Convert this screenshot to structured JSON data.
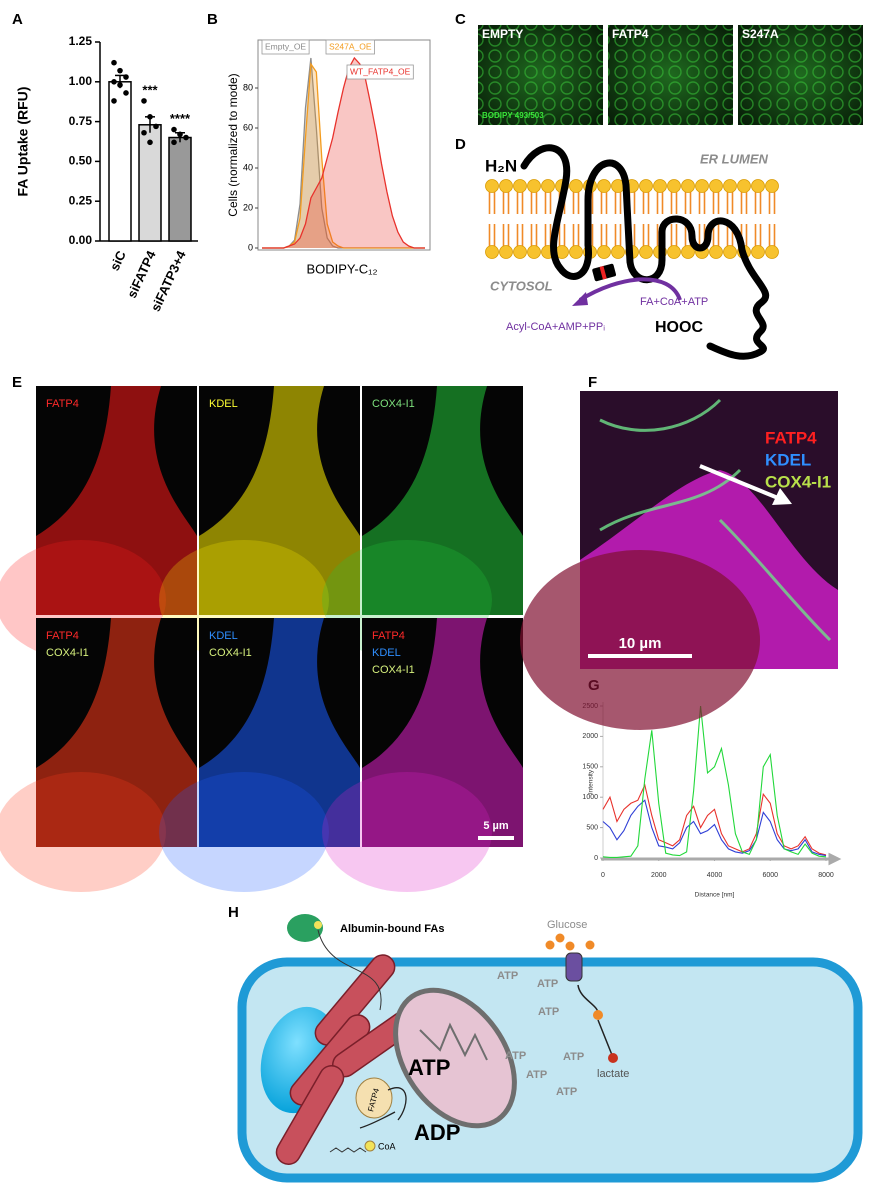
{
  "panel_labels": [
    "A",
    "B",
    "C",
    "D",
    "E",
    "F",
    "G",
    "H"
  ],
  "chart_data": [
    {
      "type": "bar",
      "ylabel": "FA Uptake (RFU)",
      "categories": [
        "siC",
        "siFATP4",
        "siFATP3+4"
      ],
      "values": [
        1.0,
        0.73,
        0.65
      ],
      "errors": [
        0.04,
        0.05,
        0.03
      ],
      "bar_colors": [
        "#ffffff",
        "#d9d9d9",
        "#999999"
      ],
      "points": [
        [
          1.12,
          1.07,
          1.03,
          1.0,
          0.98,
          0.93,
          0.88
        ],
        [
          0.88,
          0.78,
          0.72,
          0.68,
          0.62
        ],
        [
          0.7,
          0.67,
          0.65,
          0.62
        ]
      ],
      "significance": [
        {
          "index": 1,
          "text": "***"
        },
        {
          "index": 2,
          "text": "****"
        }
      ],
      "ylim": [
        0,
        1.25
      ],
      "yticks": [
        {
          "value": 0,
          "label": "0.00"
        },
        {
          "value": 0.25,
          "label": "0.25"
        },
        {
          "value": 0.5,
          "label": "0.50"
        },
        {
          "value": 0.75,
          "label": "0.75"
        },
        {
          "value": 1.0,
          "label": "1.00"
        },
        {
          "value": 1.25,
          "label": "1.25"
        }
      ]
    },
    {
      "type": "area",
      "xlabel": "BODIPY-C₁₂",
      "ylabel": "Cells (normalized to mode)",
      "x": [
        0,
        1,
        2,
        3,
        4,
        5,
        6,
        7,
        8,
        9,
        10,
        11,
        12,
        13,
        14,
        15,
        16,
        17,
        18,
        19,
        20,
        21,
        22,
        23,
        24,
        25,
        26,
        27,
        28,
        29,
        30
      ],
      "xlim": [
        0,
        30
      ],
      "ylim": [
        0,
        100
      ],
      "yticks": [
        0,
        20,
        40,
        60,
        80
      ],
      "series": [
        {
          "name": "Empty_OE",
          "color": "#8c8c8c",
          "values": [
            0,
            0,
            0,
            0,
            0,
            1,
            4,
            22,
            70,
            95,
            60,
            20,
            5,
            1,
            0,
            0,
            0,
            0,
            0,
            0,
            0,
            0,
            0,
            0,
            0,
            0,
            0,
            0,
            0,
            0,
            0
          ]
        },
        {
          "name": "S247A_OE",
          "color": "#f39c1f",
          "values": [
            0,
            0,
            0,
            0,
            0,
            1,
            3,
            15,
            55,
            92,
            88,
            45,
            12,
            3,
            1,
            0,
            0,
            0,
            0,
            0,
            0,
            0,
            0,
            0,
            0,
            0,
            0,
            0,
            0,
            0,
            0
          ]
        },
        {
          "name": "WT_FATP4_OE",
          "color": "#e8322c",
          "values": [
            0,
            0,
            0,
            0,
            0,
            1,
            2,
            5,
            12,
            25,
            30,
            35,
            45,
            55,
            68,
            80,
            90,
            95,
            92,
            85,
            72,
            58,
            42,
            28,
            16,
            8,
            3,
            1,
            0,
            0,
            0
          ]
        }
      ]
    },
    {
      "type": "line",
      "xlabel": "Distance [nm]",
      "ylabel": "Intensity",
      "x": [
        0,
        250,
        500,
        750,
        1000,
        1250,
        1500,
        1750,
        2000,
        2250,
        2500,
        2750,
        3000,
        3250,
        3500,
        3750,
        4000,
        4250,
        4500,
        4750,
        5000,
        5250,
        5500,
        5750,
        6000,
        6250,
        6500,
        6750,
        7000,
        7250,
        7500,
        7750,
        8000
      ],
      "xlim": [
        0,
        8000
      ],
      "ylim": [
        0,
        2500
      ],
      "xticks": [
        0,
        2000,
        4000,
        6000,
        8000
      ],
      "yticks": [
        0,
        500,
        1000,
        1500,
        2000,
        2500
      ],
      "series": [
        {
          "color": "#e8322c",
          "values": [
            800,
            1000,
            600,
            800,
            900,
            950,
            1200,
            700,
            300,
            250,
            200,
            300,
            700,
            850,
            500,
            700,
            800,
            400,
            200,
            150,
            100,
            150,
            400,
            1050,
            900,
            400,
            200,
            150,
            200,
            350,
            150,
            80,
            50
          ]
        },
        {
          "color": "#2f3fd6",
          "values": [
            600,
            500,
            300,
            450,
            700,
            850,
            950,
            500,
            200,
            180,
            150,
            250,
            500,
            600,
            400,
            450,
            550,
            300,
            150,
            100,
            80,
            120,
            300,
            750,
            600,
            300,
            150,
            120,
            150,
            300,
            100,
            60,
            40
          ]
        },
        {
          "color": "#22d83a",
          "values": [
            20,
            10,
            10,
            20,
            30,
            200,
            1300,
            2100,
            900,
            80,
            50,
            40,
            100,
            1100,
            2500,
            1400,
            1500,
            1800,
            1200,
            400,
            100,
            60,
            300,
            1500,
            1700,
            700,
            150,
            100,
            60,
            230,
            80,
            30,
            20
          ]
        }
      ]
    }
  ],
  "panel_c": {
    "images": [
      "EMPTY",
      "FATP4",
      "S247A"
    ],
    "stain": "BODIPY 493/503"
  },
  "panel_d": {
    "n_term": "H₂N",
    "c_term": "HOOC",
    "lumen": "ER LUMEN",
    "cytosol": "CYTOSOL",
    "substrates": "FA+CoA+ATP",
    "products": "Acyl-CoA+AMP+PPᵢ"
  },
  "panel_e": {
    "images": [
      {
        "labels": [
          {
            "text": "FATP4",
            "color": "#ff2a2a"
          }
        ],
        "tint": "#ff1a1a"
      },
      {
        "labels": [
          {
            "text": "KDEL",
            "color": "#ffff33"
          }
        ],
        "tint": "#ffee00"
      },
      {
        "labels": [
          {
            "text": "COX4-I1",
            "color": "#7de07d"
          }
        ],
        "tint": "#22c83a"
      },
      {
        "labels": [
          {
            "text": "FATP4",
            "color": "#ff2a2a"
          },
          {
            "text": "COX4-I1",
            "color": "#d6f07d"
          }
        ],
        "tint": "#ff3a1a"
      },
      {
        "labels": [
          {
            "text": "KDEL",
            "color": "#2f8fff"
          },
          {
            "text": "COX4-I1",
            "color": "#d6f07d"
          }
        ],
        "tint": "#1a5cff"
      },
      {
        "labels": [
          {
            "text": "FATP4",
            "color": "#ff2a2a"
          },
          {
            "text": "KDEL",
            "color": "#2f8fff"
          },
          {
            "text": "COX4-I1",
            "color": "#d6f07d"
          }
        ],
        "tint": "#e020c8"
      }
    ],
    "scale_bar": "5 µm"
  },
  "panel_f": {
    "labels": [
      {
        "text": "FATP4",
        "color": "#ff2020"
      },
      {
        "text": "KDEL",
        "color": "#2f8fff"
      },
      {
        "text": "COX4-I1",
        "color": "#b8e04a"
      }
    ],
    "scale_bar": "10 µm"
  },
  "panel_h": {
    "albumin": "Albumin-bound FAs",
    "glucose": "Glucose",
    "small_atp": [
      "ATP",
      "ATP",
      "ATP",
      "ATP",
      "ATP",
      "ATP",
      "ATP"
    ],
    "lactate": "lactate",
    "enzyme": "FATP4",
    "coa": "CoA",
    "atp": "ATP",
    "adp": "ADP"
  }
}
